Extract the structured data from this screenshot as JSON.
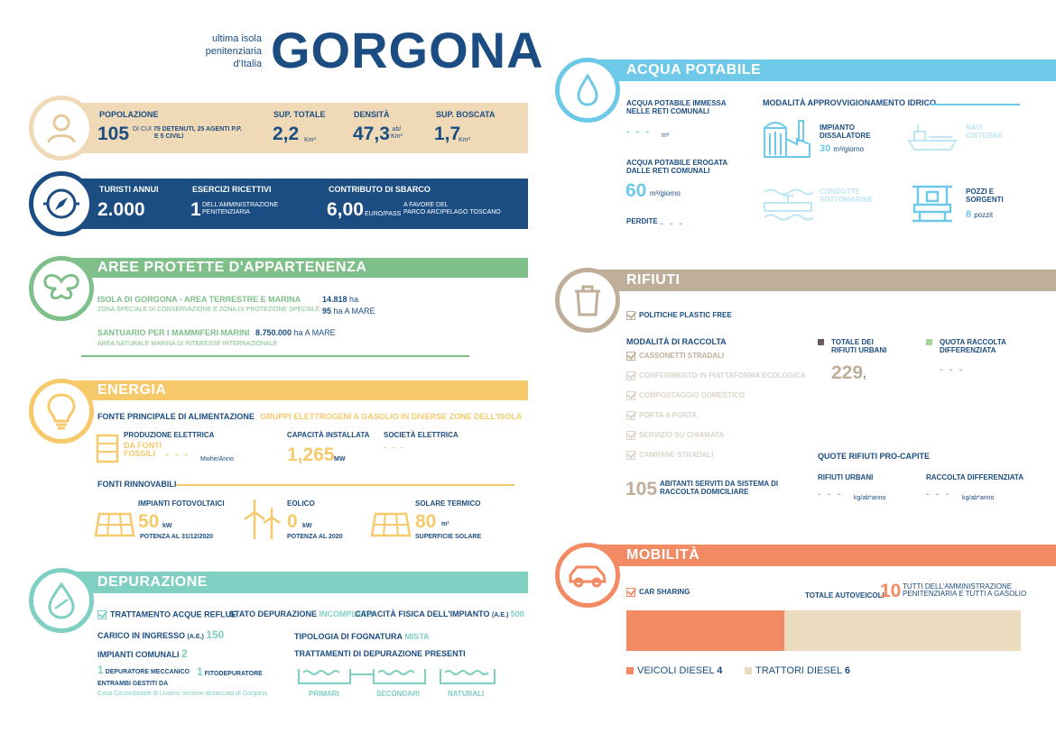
{
  "header": {
    "subtitle_l1": "ultima isola",
    "subtitle_l2": "penitenziaria",
    "subtitle_l3": "d'Italia",
    "title": "GORGONA"
  },
  "popolazione": {
    "label": "POPOLAZIONE",
    "value": "105",
    "detail_pre": "DI CUI",
    "detail_bold1": "75 DETENUTI, 25 AGENTI P.P.",
    "detail_bold2": "E 5 CIVILI",
    "sup_label": "SUP. TOTALE",
    "sup_value": "2,2",
    "sup_unit": "Km²",
    "dens_label": "DENSITÀ",
    "dens_value": "47,3",
    "dens_unit_top": "ab/",
    "dens_unit_bot": "Km²",
    "bosc_label": "SUP. BOSCATA",
    "bosc_value": "1,7",
    "bosc_unit": "Km²"
  },
  "turisti": {
    "label": "TURISTI ANNUI",
    "value": "2.000",
    "eserc_label": "ESERCIZI RICETTIVI",
    "eserc_value": "1",
    "eserc_d1": "DELL'AMMINISTRAZIONE",
    "eserc_d2": "PENITENZIARIA",
    "contr_label": "CONTRIBUTO DI SBARCO",
    "contr_value": "6,00",
    "contr_unit": "EURO/PASS",
    "contr_d1": "A FAVORE DEL",
    "contr_d2": "PARCO ARCIPELAGO TOSCANO"
  },
  "aree": {
    "title": "AREE PROTETTE D'APPARTENENZA",
    "a1_title": "ISOLA DI GORGONA - AREA TERRESTRE E MARINA",
    "a1_sub": "ZONA SPECIALE DI CONSERVAZIONE E ZONA DI PROTEZIONE SPECIALE",
    "a1_v1": "14.818",
    "a1_u1": "ha",
    "a1_v2": "95",
    "a1_u2": "ha A MARE",
    "a2_title": "SANTUARIO PER I MAMMIFERI MARINI",
    "a2_v": "8.750.000",
    "a2_u": "ha A MARE",
    "a2_sub": "AREA NATURALE MARINA DI INTERESSE INTERNAZIONALE"
  },
  "energia": {
    "title": "ENERGIA",
    "fonte_label": "FONTE PRINCIPALE DI ALIMENTAZIONE",
    "fonte_value": "GRUPPI ELETTROGENI A GASOLIO IN DIVERSE ZONE DELL'ISOLA",
    "prod_label": "PRODUZIONE ELETTRICA",
    "prod_sub1": "DA FONTI",
    "prod_sub2": "FOSSILI",
    "prod_value": "- - -",
    "prod_unit": "Mwhe/Anno",
    "cap_label": "CAPACITÀ INSTALLATA",
    "cap_value": "1,265",
    "cap_unit": "MW",
    "soc_label": "SOCIETÀ ELETTRICA",
    "soc_value": "- - -",
    "rinn_label": "FONTI RINNOVABILI",
    "fv_label": "IMPIANTI FOTOVOLTAICI",
    "fv_value": "50",
    "fv_unit": "kW",
    "fv_sub": "POTENZA AL 31/12/2020",
    "eol_label": "EOLICO",
    "eol_value": "0",
    "eol_unit": "kW",
    "eol_sub": "POTENZA AL 2020",
    "sol_label": "SOLARE TERMICO",
    "sol_value": "80",
    "sol_unit": "m²",
    "sol_sub": "SUPERFICIE SOLARE"
  },
  "depurazione": {
    "title": "DEPURAZIONE",
    "tratt_label": "TRATTAMENTO ACQUE REFLUE",
    "stato_label": "STATO DEPURAZIONE",
    "stato_value": "INCOMPLETO",
    "capf_label": "CAPACITÀ FISICA DELL'IMPIANTO",
    "capf_ae": "(A.E.)",
    "capf_value": "500",
    "carico_label": "CARICO IN INGRESSO",
    "carico_ae": "(A.E.)",
    "carico_value": "150",
    "tipo_label": "TIPOLOGIA DI FOGNATURA",
    "tipo_value": "MISTA",
    "imp_label": "IMPIANTI COMUNALI",
    "imp_value": "2",
    "tratt_pres": "TRATTAMENTI DI DEPURAZIONE PRESENTI",
    "dep_mecc_n": "1",
    "dep_mecc": "DEPURATORE MECCANICO",
    "fito_n": "1",
    "fito": "FITODEPURATORE",
    "gestiti": "ENTRAMBI GESTITI DA",
    "gestore": "Casa Circondariale di Livorno sezione distaccata di Gorgona",
    "t1": "PRIMARI",
    "t2": "SECONDARI",
    "t3": "NATURALI"
  },
  "acqua": {
    "title": "ACQUA POTABILE",
    "imm_l1": "ACQUA POTABILE IMMESSA",
    "imm_l2": "NELLE RETI COMUNALI",
    "imm_value": "- - -",
    "imm_unit": "m³",
    "ero_l1": "ACQUA POTABILE EROGATA",
    "ero_l2": "DALLE RETI COMUNALI",
    "ero_value": "60",
    "ero_unit": "m³/giorno",
    "perd_label": "PERDITE",
    "perd_value": "- - -",
    "mod_label": "MODALITÀ APPROVVIGIONAMENTO IDRICO",
    "diss_l1": "IMPIANTO",
    "diss_l2": "DISSALATORE",
    "diss_value": "30",
    "diss_unit": "m³/giorno",
    "navi_l1": "NAVI",
    "navi_l2": "CISTERNA",
    "cond_l1": "CONDOTTE",
    "cond_l2": "SOTTOMARINE",
    "pozzi_l1": "POZZI E",
    "pozzi_l2": "SORGENTI",
    "pozzi_value": "8",
    "pozzi_unit": "pozzit"
  },
  "rifiuti": {
    "title": "RIFIUTI",
    "plastic": "POLITICHE PLASTIC FREE",
    "mod_label": "MODALITÀ DI RACCOLTA",
    "items": [
      "CASSONETTI STRADALI",
      "CONFERIMENTO IN PIATTAFORMA ECOLOGICA",
      "COMPOSTAGGIO DOMESTICO",
      "PORTA A PORTA",
      "SERVIZIO SU CHIAMATA",
      "CAMPANE STRADALI"
    ],
    "tot_l1": "TOTALE DEI",
    "tot_l2": "RIFIUTI URBANI",
    "tot_value": "229",
    "tot_unit": "t",
    "quota_l1": "QUOTA RACCOLTA",
    "quota_l2": "DIFFERENZIATA",
    "quota_value": "- - -",
    "ab_value": "105",
    "ab_l1": "ABITANTI SERVITI DA SISTEMA DI",
    "ab_l2": "RACCOLTA DOMICILIARE",
    "pc_label": "QUOTE RIFIUTI PRO-CAPITE",
    "ru_label": "RIFIUTI URBANI",
    "ru_value": "- - -",
    "ru_unit": "kg/ab*anno",
    "rd_label": "RACCOLTA DIFFERENZIATA",
    "rd_value": "- - -",
    "rd_unit": "kg/ab*anno"
  },
  "mobilita": {
    "title": "MOBILITÀ",
    "car": "CAR SHARING",
    "tot_label": "TOTALE AUTOVEICOLI",
    "tot_value": "10",
    "tot_d1": "TUTTI DELL'AMMINISTRAZIONE",
    "tot_d2": "PENITENZIARIA E TUTTI A GASOLIO",
    "diesel_label": "VEICOLI DIESEL",
    "diesel_value": 4,
    "trattori_label": "TRATTORI DIESEL",
    "trattori_value": 6,
    "diesel_color": "#f28a63",
    "trattori_color": "#ecdcbf"
  }
}
